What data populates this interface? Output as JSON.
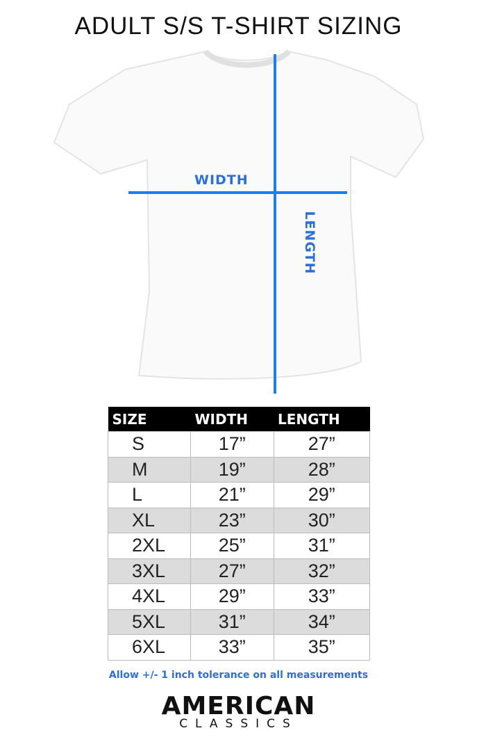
{
  "title": "ADULT S/S T-SHIRT SIZING",
  "diagram": {
    "width_label": "WIDTH",
    "length_label": "LENGTH",
    "line_color": "#1a7ff0"
  },
  "table": {
    "headers": [
      "SIZE",
      "WIDTH",
      "LENGTH"
    ],
    "rows": [
      {
        "size": "S",
        "width": "17”",
        "length": "27”"
      },
      {
        "size": "M",
        "width": "19”",
        "length": "28”"
      },
      {
        "size": "L",
        "width": "21”",
        "length": "29”"
      },
      {
        "size": "XL",
        "width": "23”",
        "length": "30”"
      },
      {
        "size": "2XL",
        "width": "25”",
        "length": "31”"
      },
      {
        "size": "3XL",
        "width": "27”",
        "length": "32”"
      },
      {
        "size": "4XL",
        "width": "29”",
        "length": "33”"
      },
      {
        "size": "5XL",
        "width": "31”",
        "length": "34”"
      },
      {
        "size": "6XL",
        "width": "33”",
        "length": "35”"
      }
    ]
  },
  "note": "Allow +/- 1 inch tolerance on all measurements",
  "logo": {
    "line1": "AMERICAN",
    "line2": "CLASSICS"
  }
}
